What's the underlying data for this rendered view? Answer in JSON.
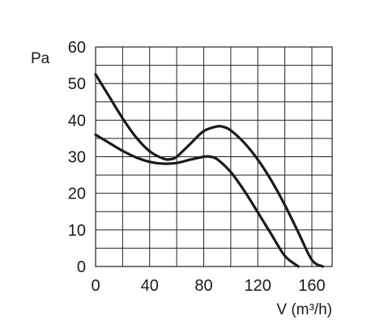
{
  "chart_data": {
    "type": "line",
    "xlabel": "V (m³/h)",
    "ylabel": "Pa",
    "xlim": [
      0,
      175
    ],
    "ylim": [
      0,
      60
    ],
    "xticks": [
      0,
      40,
      80,
      120,
      160
    ],
    "yticks": [
      0,
      10,
      20,
      30,
      40,
      50,
      60
    ],
    "grid": true,
    "x_grid_step": 20,
    "y_grid_step": 5,
    "series": [
      {
        "x": [
          0,
          10,
          20,
          30,
          40,
          50,
          55,
          60,
          70,
          80,
          90,
          95,
          100,
          110,
          120,
          130,
          140,
          150,
          160,
          168
        ],
        "y": [
          52.5,
          46.5,
          40.5,
          35.3,
          31.5,
          29.5,
          29.3,
          30.0,
          33.5,
          37.0,
          38.3,
          38.1,
          37.2,
          33.8,
          29.2,
          23.5,
          16.8,
          9.3,
          1.8,
          0
        ]
      },
      {
        "x": [
          0,
          10,
          20,
          30,
          40,
          50,
          60,
          70,
          80,
          85,
          90,
          100,
          110,
          120,
          130,
          140,
          150
        ],
        "y": [
          36.0,
          33.8,
          31.6,
          29.8,
          28.6,
          28.1,
          28.3,
          29.2,
          30.0,
          30.0,
          29.3,
          25.8,
          20.7,
          14.8,
          8.8,
          2.9,
          0
        ]
      }
    ]
  }
}
